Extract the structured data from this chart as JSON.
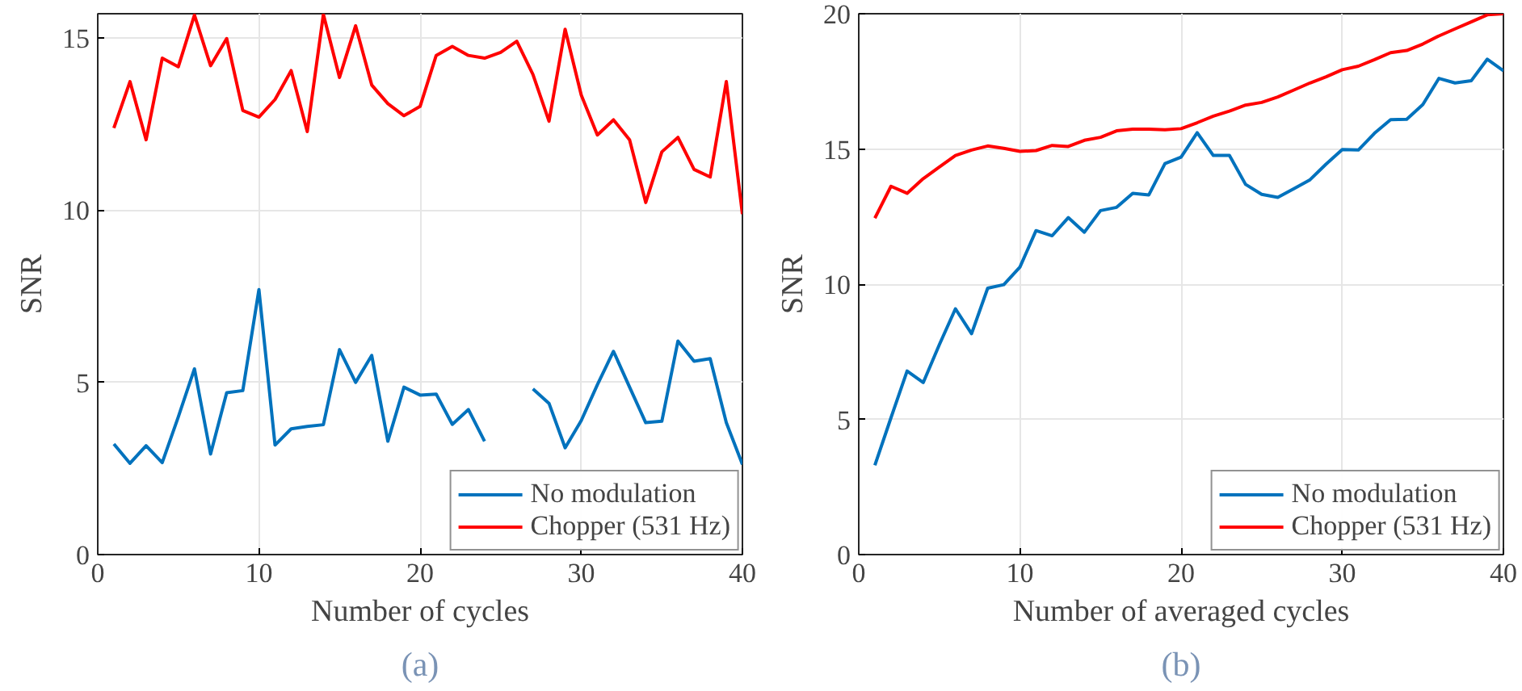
{
  "chart_data": [
    {
      "type": "line",
      "xlabel": "Number of cycles",
      "ylabel": "SNR",
      "annotations": [
        "(a)"
      ],
      "x": [
        1,
        2,
        3,
        4,
        5,
        6,
        7,
        8,
        9,
        10,
        11,
        12,
        13,
        14,
        15,
        16,
        17,
        18,
        19,
        20,
        21,
        22,
        23,
        24,
        25,
        26,
        27,
        28,
        29,
        30,
        31,
        32,
        33,
        34,
        35,
        36,
        37,
        38,
        39,
        40
      ],
      "xlim": [
        0,
        40
      ],
      "xticks": [
        0,
        10,
        20,
        30,
        40
      ],
      "ylim": [
        0,
        15.7
      ],
      "yticks": [
        0,
        5,
        10,
        15
      ],
      "grid": true,
      "legend": "bottom right",
      "line_style": "solid",
      "marker": "none",
      "series": [
        {
          "name": "No modulation",
          "color": "#0072bd",
          "values": [
            3.21,
            2.65,
            3.16,
            2.67,
            4.0,
            5.39,
            2.92,
            4.7,
            4.76,
            7.69,
            3.18,
            3.65,
            3.72,
            3.77,
            5.95,
            5.0,
            5.78,
            3.29,
            4.86,
            4.63,
            4.66,
            3.78,
            4.21,
            3.29,
            null,
            null,
            4.81,
            4.39,
            3.1,
            3.89,
            4.93,
            5.9,
            4.86,
            3.83,
            3.87,
            6.2,
            5.61,
            5.69,
            3.83,
            2.62
          ]
        },
        {
          "name": "Chopper (531 Hz)",
          "color": "#ff0000",
          "values": [
            12.38,
            13.73,
            12.04,
            14.41,
            14.16,
            15.66,
            14.19,
            14.98,
            12.89,
            12.7,
            13.21,
            14.05,
            12.28,
            15.68,
            13.85,
            15.35,
            13.63,
            13.09,
            12.74,
            13.01,
            14.49,
            14.75,
            14.49,
            14.41,
            14.58,
            14.9,
            13.94,
            12.58,
            15.25,
            13.34,
            12.18,
            12.62,
            12.04,
            10.22,
            11.69,
            12.11,
            11.18,
            10.96,
            13.73,
            9.88
          ]
        }
      ]
    },
    {
      "type": "line",
      "xlabel": "Number of averaged cycles",
      "ylabel": "SNR",
      "annotations": [
        "(b)"
      ],
      "x": [
        1,
        2,
        3,
        4,
        5,
        6,
        7,
        8,
        9,
        10,
        11,
        12,
        13,
        14,
        15,
        16,
        17,
        18,
        19,
        20,
        21,
        22,
        23,
        24,
        25,
        26,
        27,
        28,
        29,
        30,
        31,
        32,
        33,
        34,
        35,
        36,
        37,
        38,
        39,
        40
      ],
      "xlim": [
        0,
        40
      ],
      "xticks": [
        0,
        10,
        20,
        30,
        40
      ],
      "ylim": [
        0,
        20
      ],
      "yticks": [
        0,
        5,
        10,
        15,
        20
      ],
      "grid": true,
      "legend": "bottom right",
      "line_style": "solid",
      "marker": "none",
      "series": [
        {
          "name": "No modulation",
          "color": "#0072bd",
          "values": [
            3.3,
            5.06,
            6.79,
            6.36,
            7.76,
            9.09,
            8.17,
            9.85,
            9.98,
            10.63,
            11.98,
            11.79,
            12.46,
            11.92,
            12.72,
            12.84,
            13.36,
            13.3,
            14.46,
            14.7,
            15.6,
            14.76,
            14.76,
            13.69,
            13.32,
            13.21,
            13.53,
            13.86,
            14.44,
            14.98,
            14.96,
            15.58,
            16.08,
            16.1,
            16.64,
            17.61,
            17.44,
            17.52,
            18.32,
            17.89
          ]
        },
        {
          "name": "Chopper (531 Hz)",
          "color": "#ff0000",
          "values": [
            12.44,
            13.62,
            13.36,
            13.9,
            14.33,
            14.76,
            14.96,
            15.11,
            15.02,
            14.91,
            14.94,
            15.13,
            15.09,
            15.32,
            15.43,
            15.67,
            15.73,
            15.73,
            15.71,
            15.75,
            15.97,
            16.21,
            16.4,
            16.62,
            16.72,
            16.92,
            17.18,
            17.44,
            17.67,
            17.93,
            18.06,
            18.3,
            18.56,
            18.64,
            18.88,
            19.18,
            19.44,
            19.7,
            19.96,
            20.0
          ]
        }
      ]
    }
  ]
}
